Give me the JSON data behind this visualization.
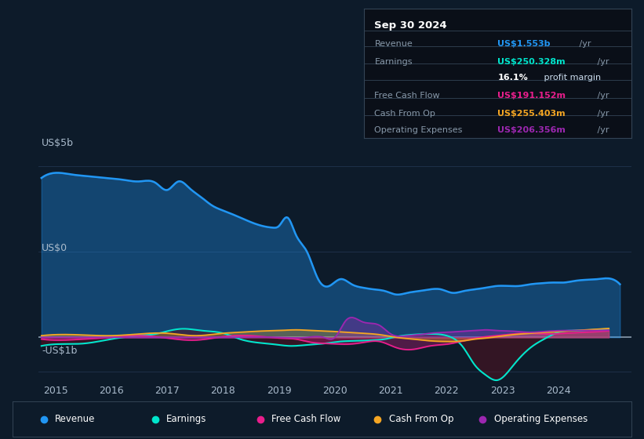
{
  "bg_color": "#0d1b2a",
  "plot_bg": "#0d1b2a",
  "grid_color": "#1e3048",
  "zero_line_color": "#8899aa",
  "ylabel_5b": "US$5b",
  "ylabel_0": "US$0",
  "ylabel_neg1b": "-US$1b",
  "ylim": [
    -1.3,
    6.0
  ],
  "xlim": [
    2014.7,
    2025.3
  ],
  "xticks": [
    2015,
    2016,
    2017,
    2018,
    2019,
    2020,
    2021,
    2022,
    2023,
    2024
  ],
  "revenue_color": "#2196f3",
  "earnings_color": "#00e5cc",
  "fcf_color": "#e91e8c",
  "cashop_color": "#f5a623",
  "opex_color": "#9c27b0",
  "info_date": "Sep 30 2024",
  "info_rows": [
    {
      "label": "Revenue",
      "value": "US$1.553b",
      "suffix": " /yr",
      "value_color": "#2196f3",
      "bold": true
    },
    {
      "label": "Earnings",
      "value": "US$250.328m",
      "suffix": " /yr",
      "value_color": "#00e5cc",
      "bold": true
    },
    {
      "label": "",
      "value": "16.1%",
      "suffix": " profit margin",
      "value_color": "#ffffff",
      "bold": true
    },
    {
      "label": "Free Cash Flow",
      "value": "US$191.152m",
      "suffix": " /yr",
      "value_color": "#e91e8c",
      "bold": true
    },
    {
      "label": "Cash From Op",
      "value": "US$255.403m",
      "suffix": " /yr",
      "value_color": "#f5a623",
      "bold": true
    },
    {
      "label": "Operating Expenses",
      "value": "US$206.356m",
      "suffix": " /yr",
      "value_color": "#9c27b0",
      "bold": true
    }
  ],
  "legend": [
    {
      "label": "Revenue",
      "color": "#2196f3"
    },
    {
      "label": "Earnings",
      "color": "#00e5cc"
    },
    {
      "label": "Free Cash Flow",
      "color": "#e91e8c"
    },
    {
      "label": "Cash From Op",
      "color": "#f5a623"
    },
    {
      "label": "Operating Expenses",
      "color": "#9c27b0"
    }
  ],
  "revenue_x": [
    2014.75,
    2015.0,
    2015.3,
    2015.6,
    2015.9,
    2016.2,
    2016.5,
    2016.8,
    2017.0,
    2017.2,
    2017.4,
    2017.6,
    2017.8,
    2018.0,
    2018.3,
    2018.6,
    2018.9,
    2019.0,
    2019.15,
    2019.3,
    2019.5,
    2019.7,
    2019.9,
    2020.1,
    2020.3,
    2020.5,
    2020.7,
    2020.9,
    2021.1,
    2021.3,
    2021.5,
    2021.7,
    2021.9,
    2022.1,
    2022.3,
    2022.5,
    2022.7,
    2022.9,
    2023.1,
    2023.3,
    2023.5,
    2023.7,
    2023.9,
    2024.1,
    2024.3,
    2024.5,
    2024.7,
    2024.9,
    2025.1
  ],
  "revenue_y": [
    4.65,
    4.8,
    4.75,
    4.7,
    4.65,
    4.6,
    4.55,
    4.5,
    4.3,
    4.55,
    4.35,
    4.1,
    3.85,
    3.7,
    3.5,
    3.3,
    3.2,
    3.25,
    3.5,
    3.0,
    2.5,
    1.7,
    1.5,
    1.7,
    1.55,
    1.45,
    1.4,
    1.35,
    1.25,
    1.3,
    1.35,
    1.4,
    1.4,
    1.3,
    1.35,
    1.4,
    1.45,
    1.5,
    1.5,
    1.5,
    1.55,
    1.58,
    1.6,
    1.6,
    1.65,
    1.68,
    1.7,
    1.72,
    1.55
  ],
  "earnings_x": [
    2014.75,
    2015.0,
    2015.5,
    2016.0,
    2016.5,
    2016.8,
    2017.0,
    2017.3,
    2017.6,
    2018.0,
    2018.3,
    2018.6,
    2018.9,
    2019.2,
    2019.5,
    2019.8,
    2020.1,
    2020.4,
    2020.7,
    2020.9,
    2021.1,
    2021.4,
    2021.7,
    2022.0,
    2022.3,
    2022.5,
    2022.7,
    2022.9,
    2023.2,
    2023.5,
    2023.8,
    2024.0,
    2024.3,
    2024.6,
    2024.9
  ],
  "earnings_y": [
    -0.25,
    -0.2,
    -0.18,
    -0.05,
    0.05,
    0.1,
    0.18,
    0.25,
    0.2,
    0.12,
    -0.05,
    -0.15,
    -0.2,
    -0.25,
    -0.22,
    -0.18,
    -0.12,
    -0.1,
    -0.08,
    -0.05,
    0.02,
    0.08,
    0.1,
    0.05,
    -0.3,
    -0.8,
    -1.1,
    -1.25,
    -0.8,
    -0.3,
    0.0,
    0.15,
    0.2,
    0.22,
    0.25
  ],
  "fcf_x": [
    2014.75,
    2015.0,
    2015.5,
    2016.0,
    2016.5,
    2017.0,
    2017.5,
    2018.0,
    2018.5,
    2019.0,
    2019.3,
    2019.6,
    2019.9,
    2020.2,
    2020.5,
    2020.8,
    2021.1,
    2021.4,
    2021.7,
    2022.0,
    2022.3,
    2022.6,
    2022.9,
    2023.2,
    2023.5,
    2023.8,
    2024.1,
    2024.5,
    2024.9
  ],
  "fcf_y": [
    -0.05,
    -0.08,
    -0.05,
    0.0,
    0.05,
    -0.02,
    -0.08,
    0.02,
    0.05,
    -0.02,
    -0.05,
    -0.15,
    -0.18,
    -0.2,
    -0.15,
    -0.12,
    -0.3,
    -0.35,
    -0.25,
    -0.2,
    -0.1,
    0.0,
    0.05,
    0.1,
    0.12,
    0.1,
    0.12,
    0.15,
    0.19
  ],
  "cashop_x": [
    2014.75,
    2015.0,
    2015.5,
    2016.0,
    2016.5,
    2017.0,
    2017.5,
    2018.0,
    2018.3,
    2018.6,
    2019.0,
    2019.3,
    2019.6,
    2019.9,
    2020.2,
    2020.5,
    2020.8,
    2021.1,
    2021.4,
    2021.7,
    2022.0,
    2022.3,
    2022.5,
    2022.7,
    2022.9,
    2023.2,
    2023.5,
    2023.8,
    2024.1,
    2024.5,
    2024.9
  ],
  "cashop_y": [
    0.05,
    0.08,
    0.07,
    0.05,
    0.1,
    0.12,
    0.05,
    0.12,
    0.15,
    0.18,
    0.2,
    0.22,
    0.2,
    0.18,
    0.15,
    0.12,
    0.08,
    0.0,
    -0.05,
    -0.1,
    -0.12,
    -0.1,
    -0.05,
    -0.02,
    0.02,
    0.08,
    0.12,
    0.15,
    0.18,
    0.22,
    0.26
  ],
  "opex_x": [
    2014.75,
    2015.0,
    2015.5,
    2016.0,
    2016.5,
    2017.0,
    2017.5,
    2018.0,
    2019.0,
    2019.5,
    2019.8,
    2020.0,
    2020.2,
    2020.5,
    2020.8,
    2021.0,
    2021.3,
    2021.5,
    2021.7,
    2022.0,
    2022.3,
    2022.5,
    2022.7,
    2022.9,
    2023.2,
    2023.5,
    2023.8,
    2024.1,
    2024.5,
    2024.9
  ],
  "opex_y": [
    0.0,
    0.0,
    0.0,
    0.0,
    0.0,
    0.0,
    0.0,
    0.0,
    0.0,
    0.0,
    0.0,
    0.0,
    0.5,
    0.45,
    0.35,
    0.1,
    0.05,
    0.08,
    0.12,
    0.15,
    0.18,
    0.2,
    0.22,
    0.2,
    0.18,
    0.15,
    0.18,
    0.2,
    0.2,
    0.21
  ]
}
